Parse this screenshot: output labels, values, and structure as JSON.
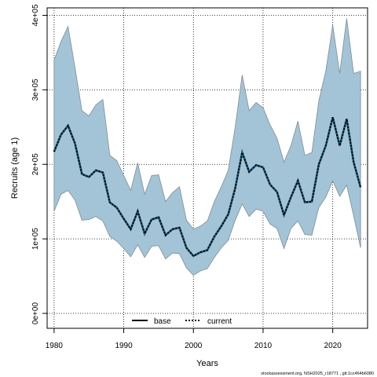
{
  "chart_data": {
    "type": "line",
    "title": "",
    "xlabel": "Years",
    "ylabel": "Recruits (age 1)",
    "xlim": [
      1979,
      2025
    ],
    "ylim": [
      -20000,
      410000
    ],
    "x_ticks": [
      1980,
      1990,
      2000,
      2010,
      2020
    ],
    "y_ticks": [
      {
        "value": 0,
        "label": "0e+00"
      },
      {
        "value": 100000,
        "label": "1e+05"
      },
      {
        "value": 200000,
        "label": "2e+05"
      },
      {
        "value": 300000,
        "label": "3e+05"
      },
      {
        "value": 400000,
        "label": "4e+05"
      }
    ],
    "grid": true,
    "legend_position": "bottom",
    "band_color": "#a3c4d6",
    "band_edge_color": "#7f8c94",
    "years": [
      1980,
      1981,
      1982,
      1983,
      1984,
      1985,
      1986,
      1987,
      1988,
      1989,
      1990,
      1991,
      1992,
      1993,
      1994,
      1995,
      1996,
      1997,
      1998,
      1999,
      2000,
      2001,
      2002,
      2003,
      2004,
      2005,
      2006,
      2007,
      2008,
      2009,
      2010,
      2011,
      2012,
      2013,
      2014,
      2015,
      2016,
      2017,
      2018,
      2019,
      2020,
      2021,
      2022,
      2023,
      2024
    ],
    "upper": [
      340000,
      365000,
      385000,
      330000,
      272000,
      265000,
      280000,
      287000,
      212000,
      205000,
      185000,
      165000,
      202000,
      160000,
      185000,
      186000,
      150000,
      162000,
      170000,
      125000,
      113000,
      117000,
      124000,
      150000,
      170000,
      192000,
      250000,
      320000,
      272000,
      283000,
      276000,
      253000,
      235000,
      203000,
      225000,
      258000,
      212000,
      216000,
      285000,
      325000,
      387000,
      322000,
      396000,
      322000,
      325000
    ],
    "lower": [
      137000,
      160000,
      165000,
      152000,
      125000,
      126000,
      130000,
      124000,
      103000,
      97000,
      87000,
      76000,
      92000,
      75000,
      90000,
      91000,
      73000,
      81000,
      80000,
      61000,
      51000,
      57000,
      60000,
      75000,
      88000,
      98000,
      125000,
      147000,
      130000,
      140000,
      137000,
      120000,
      114000,
      87000,
      114000,
      124000,
      106000,
      105000,
      142000,
      156000,
      178000,
      157000,
      172000,
      131000,
      88000
    ],
    "series": [
      {
        "name": "base",
        "style": "solid",
        "color": "#000000",
        "values": []
      },
      {
        "name": "current",
        "style": "dotted",
        "color": "#000000",
        "band_color": "#1f5d7a",
        "values": [
          217000,
          240000,
          252000,
          228000,
          187000,
          183000,
          192000,
          189000,
          149000,
          142000,
          127000,
          113000,
          137000,
          107000,
          126000,
          129000,
          105000,
          113000,
          115000,
          88000,
          77000,
          82000,
          85000,
          103000,
          117000,
          133000,
          168000,
          216000,
          190000,
          199000,
          196000,
          173000,
          163000,
          132000,
          156000,
          178000,
          149000,
          150000,
          200000,
          225000,
          263000,
          225000,
          261000,
          203000,
          169000
        ]
      }
    ],
    "footer_text": "stockassessment.org, NSH2025_r18771 , git:1cc464b6080"
  }
}
